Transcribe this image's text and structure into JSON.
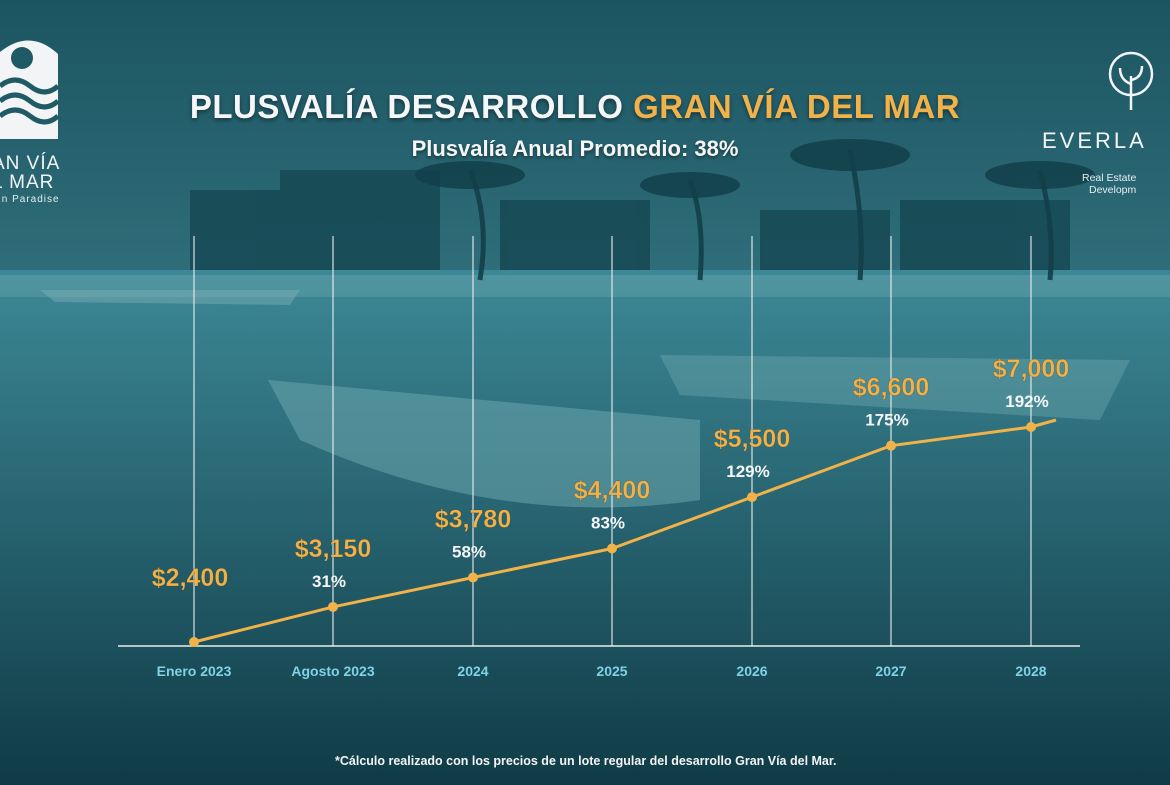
{
  "header": {
    "title_main": "PLUSVALÍA DESARROLLO",
    "title_accent": "GRAN VÍA DEL MAR",
    "subtitle": "Plusvalía Anual Promedio:  38%"
  },
  "logos": {
    "left_name": "AN VÍA\nL MAR",
    "left_tagline": "In Paradise",
    "right_brand": "EVERLA",
    "right_sub1": "Real Estate",
    "right_sub2": "Developm"
  },
  "footnote": "*Cálculo realizado con los precios de un lote regular del desarrollo Gran Vía del Mar.",
  "colors": {
    "accent": "#f2b24a",
    "line": "#f2b24a",
    "axis_label": "#7fd3e6",
    "text": "#f4f6f7"
  },
  "chart_data": {
    "type": "line",
    "categories": [
      "Enero 2023",
      "Agosto 2023",
      "2024",
      "2025",
      "2026",
      "2027",
      "2028"
    ],
    "values": [
      2400,
      3150,
      3780,
      4400,
      5500,
      6600,
      7000
    ],
    "value_labels": [
      "$2,400",
      "$3,150",
      "$3,780",
      "$4,400",
      "$5,500",
      "$6,600",
      "$7,000"
    ],
    "percent_labels": [
      "",
      "31%",
      "58%",
      "83%",
      "129%",
      "175%",
      "192%"
    ],
    "title": "",
    "xlabel": "",
    "ylabel": "",
    "grid": "vertical",
    "legend": "none"
  }
}
